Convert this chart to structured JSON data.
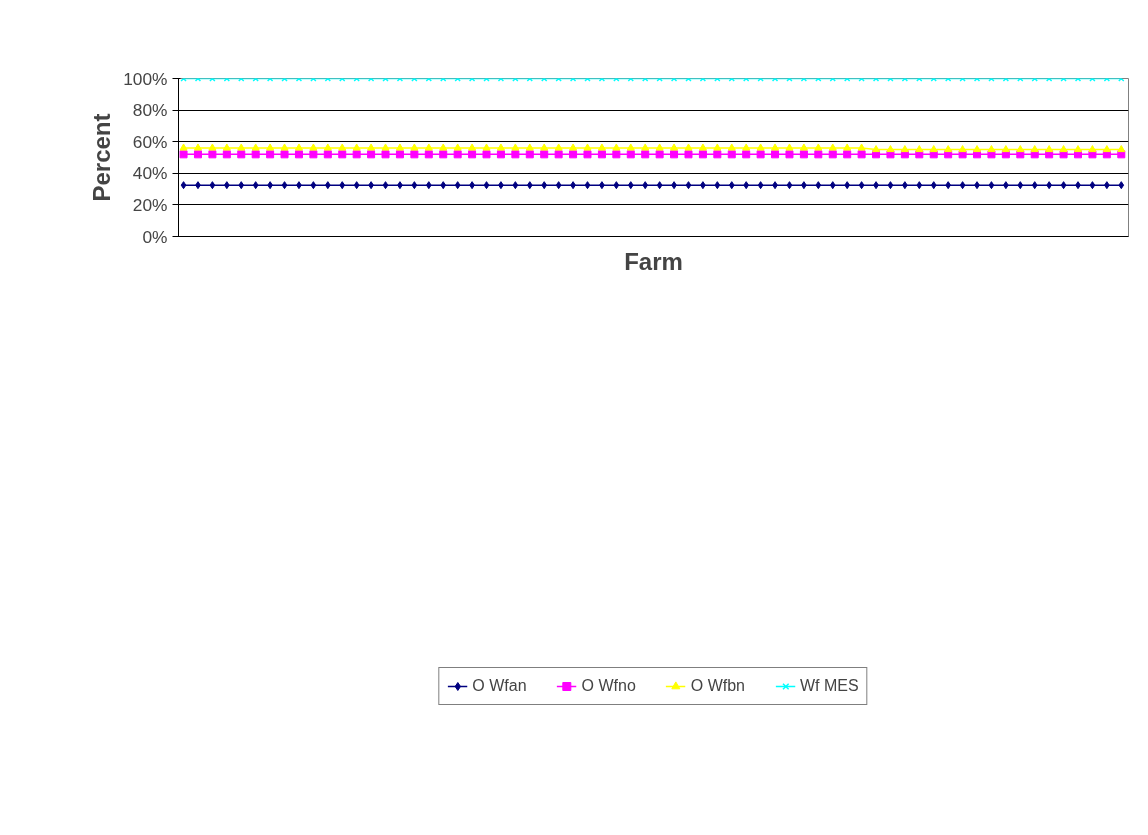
{
  "chart_data": {
    "type": "line",
    "xlabel": "Farm",
    "ylabel": "Percent",
    "categories": [
      null,
      null,
      null,
      null,
      null,
      null,
      null,
      null,
      null,
      null,
      null,
      null,
      null,
      null,
      null,
      null,
      null,
      null,
      null,
      null,
      null,
      null,
      null,
      null,
      null,
      null,
      null,
      null,
      null,
      null,
      null,
      null,
      null,
      null,
      null,
      null,
      null,
      null,
      null,
      null,
      null,
      null,
      null,
      null,
      null,
      null,
      null,
      null,
      null,
      null,
      null,
      null,
      null,
      null,
      null,
      null,
      null,
      null,
      null,
      null,
      null,
      null,
      null,
      null,
      null,
      null
    ],
    "ylim": [
      0,
      100
    ],
    "yticks": [
      {
        "value": 0,
        "label": "0%"
      },
      {
        "value": 20,
        "label": "20%"
      },
      {
        "value": 40,
        "label": "40%"
      },
      {
        "value": 60,
        "label": "60%"
      },
      {
        "value": 80,
        "label": "80%"
      },
      {
        "value": 100,
        "label": "100%"
      }
    ],
    "grid": "y",
    "legend": "bottom",
    "tick_labels": "y",
    "line_style": "solid",
    "series": [
      {
        "name": "O Wfan",
        "color": "#000080",
        "marker": "diamond",
        "values": [
          32.5,
          32.5,
          32.5,
          32.5,
          32.5,
          32.5,
          32.5,
          32.5,
          32.5,
          32.5,
          32.5,
          32.5,
          32.5,
          32.5,
          32.5,
          32.5,
          32.5,
          32.5,
          32.5,
          32.5,
          32.5,
          32.5,
          32.5,
          32.5,
          32.5,
          32.5,
          32.5,
          32.5,
          32.5,
          32.5,
          32.5,
          32.5,
          32.5,
          32.5,
          32.5,
          32.5,
          32.5,
          32.5,
          32.5,
          32.5,
          32.5,
          32.5,
          32.5,
          32.5,
          32.5,
          32.5,
          32.5,
          32.5,
          32.5,
          32.5,
          32.5,
          32.5,
          32.5,
          32.5,
          32.5,
          32.5,
          32.5,
          32.5,
          32.5,
          32.5,
          32.5,
          32.5,
          32.5,
          32.5,
          32.5,
          32.5
        ]
      },
      {
        "name": "O Wfno",
        "color": "#ff00ff",
        "marker": "square",
        "values": [
          52,
          52,
          52,
          52,
          52,
          52,
          52,
          52,
          52,
          52,
          52,
          52,
          52,
          52,
          52,
          52,
          52,
          52,
          52,
          52,
          52,
          52,
          52,
          52,
          52,
          52,
          52,
          52,
          52,
          52,
          52,
          52,
          52,
          52,
          52,
          52,
          52,
          52,
          52,
          52,
          52,
          52,
          52,
          52,
          52,
          52,
          52,
          52,
          52,
          52,
          52,
          52,
          52,
          52,
          52,
          52,
          52,
          52,
          52,
          52,
          52,
          52,
          52,
          52,
          52,
          52
        ]
      },
      {
        "name": "O Wfbn",
        "color": "#ffff00",
        "marker": "triangle",
        "values": [
          56,
          56,
          56,
          56,
          56,
          56,
          56,
          56,
          56,
          56,
          56,
          56,
          56,
          56,
          56,
          56,
          56,
          56,
          56,
          56,
          56,
          56,
          56,
          56,
          56,
          56,
          56,
          56,
          56,
          56,
          56,
          56,
          56,
          56,
          56,
          56,
          56,
          56,
          56,
          56,
          56,
          56,
          56,
          56,
          56,
          56,
          56,
          56,
          55,
          55,
          55,
          55,
          55,
          55,
          55,
          55,
          55,
          55,
          55,
          55,
          55,
          55,
          55,
          55,
          55,
          55
        ]
      },
      {
        "name": "Wf MES",
        "color": "#00ffff",
        "marker": "cross",
        "values": [
          100,
          100,
          100,
          100,
          100,
          100,
          100,
          100,
          100,
          100,
          100,
          100,
          100,
          100,
          100,
          100,
          100,
          100,
          100,
          100,
          100,
          100,
          100,
          100,
          100,
          100,
          100,
          100,
          100,
          100,
          100,
          100,
          100,
          100,
          100,
          100,
          100,
          100,
          100,
          100,
          100,
          100,
          100,
          100,
          100,
          100,
          100,
          100,
          100,
          100,
          100,
          100,
          100,
          100,
          100,
          100,
          100,
          100,
          100,
          100,
          100,
          100,
          100,
          100,
          100,
          100
        ]
      }
    ]
  }
}
